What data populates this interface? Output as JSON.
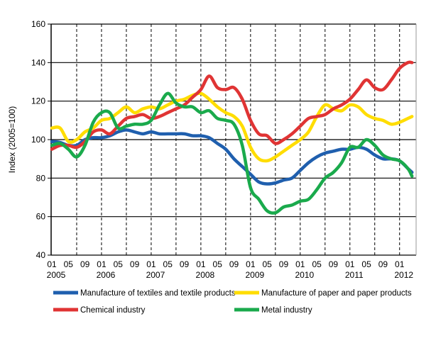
{
  "chart_data": {
    "type": "line",
    "title": "",
    "xlabel": "",
    "ylabel": "Index (2005=100)",
    "ylim": [
      40,
      160
    ],
    "yticks": [
      40,
      60,
      80,
      100,
      120,
      140,
      160
    ],
    "grid": "horizontal solid, vertical dashed every 6 months",
    "legend_position": "bottom",
    "x_tick_labels": [
      "01",
      "05",
      "09",
      "01",
      "05",
      "09",
      "01",
      "05",
      "09",
      "01",
      "05",
      "09",
      "01",
      "05",
      "09",
      "01",
      "05",
      "09",
      "01",
      "05",
      "09",
      "01"
    ],
    "year_labels": [
      "2005",
      "2006",
      "2007",
      "2008",
      "2009",
      "2010",
      "2011",
      "2012"
    ],
    "x": [
      "2005-01",
      "2005-03",
      "2005-05",
      "2005-07",
      "2005-09",
      "2005-11",
      "2006-01",
      "2006-03",
      "2006-05",
      "2006-07",
      "2006-09",
      "2006-11",
      "2007-01",
      "2007-03",
      "2007-05",
      "2007-07",
      "2007-09",
      "2007-11",
      "2008-01",
      "2008-03",
      "2008-05",
      "2008-07",
      "2008-09",
      "2008-11",
      "2009-01",
      "2009-03",
      "2009-05",
      "2009-07",
      "2009-09",
      "2009-11",
      "2010-01",
      "2010-03",
      "2010-05",
      "2010-07",
      "2010-09",
      "2010-11",
      "2011-01",
      "2011-03",
      "2011-05",
      "2011-07",
      "2011-09",
      "2011-11",
      "2012-01",
      "2012-03",
      "2012-04"
    ],
    "series": [
      {
        "name": "Manufacture of textiles and textile products",
        "color": "#1f5fae",
        "values": [
          99,
          98.5,
          97,
          97,
          100,
          101,
          101,
          102,
          104,
          105,
          104,
          103,
          104,
          103,
          103,
          103,
          103,
          102,
          102,
          101,
          98,
          95,
          90,
          86,
          82,
          78,
          77,
          77.5,
          79,
          80,
          84,
          88,
          91,
          93,
          94,
          95,
          95,
          96,
          95,
          92,
          90,
          90,
          89,
          85,
          83
        ]
      },
      {
        "name": "Manufacture of paper and paper products",
        "color": "#ffdd00",
        "values": [
          106,
          106,
          99,
          100,
          104,
          106,
          110,
          111,
          114,
          117,
          114,
          116,
          117,
          116,
          118,
          120,
          121,
          123,
          124,
          121,
          117,
          114,
          112,
          107,
          96,
          90,
          89,
          91,
          94,
          97,
          100,
          104,
          112,
          118,
          116,
          115,
          118,
          117,
          113,
          111,
          110,
          108,
          109,
          111,
          112
        ]
      },
      {
        "name": "Chemical industry",
        "color": "#e03434",
        "values": [
          95,
          97,
          97,
          96,
          99,
          104,
          105,
          103,
          107,
          111,
          112,
          113,
          111,
          112,
          114,
          116,
          118,
          122,
          126,
          133,
          127,
          126,
          127,
          121,
          110,
          103,
          102,
          98,
          100,
          103,
          107,
          111,
          112,
          113,
          116,
          118,
          121,
          126,
          131,
          127,
          126,
          131,
          137,
          140,
          140
        ]
      },
      {
        "name": "Metal industry",
        "color": "#1aaa4c",
        "values": [
          97,
          98,
          95,
          91,
          97,
          109,
          114,
          114,
          106,
          107,
          108,
          108,
          110,
          118,
          124,
          119,
          117,
          117,
          114,
          115,
          111,
          110,
          108,
          97,
          75,
          69,
          63,
          62,
          65,
          66,
          68,
          69,
          74,
          80,
          83,
          88,
          96,
          96,
          100,
          97,
          92,
          90,
          89,
          85,
          81
        ]
      }
    ]
  }
}
